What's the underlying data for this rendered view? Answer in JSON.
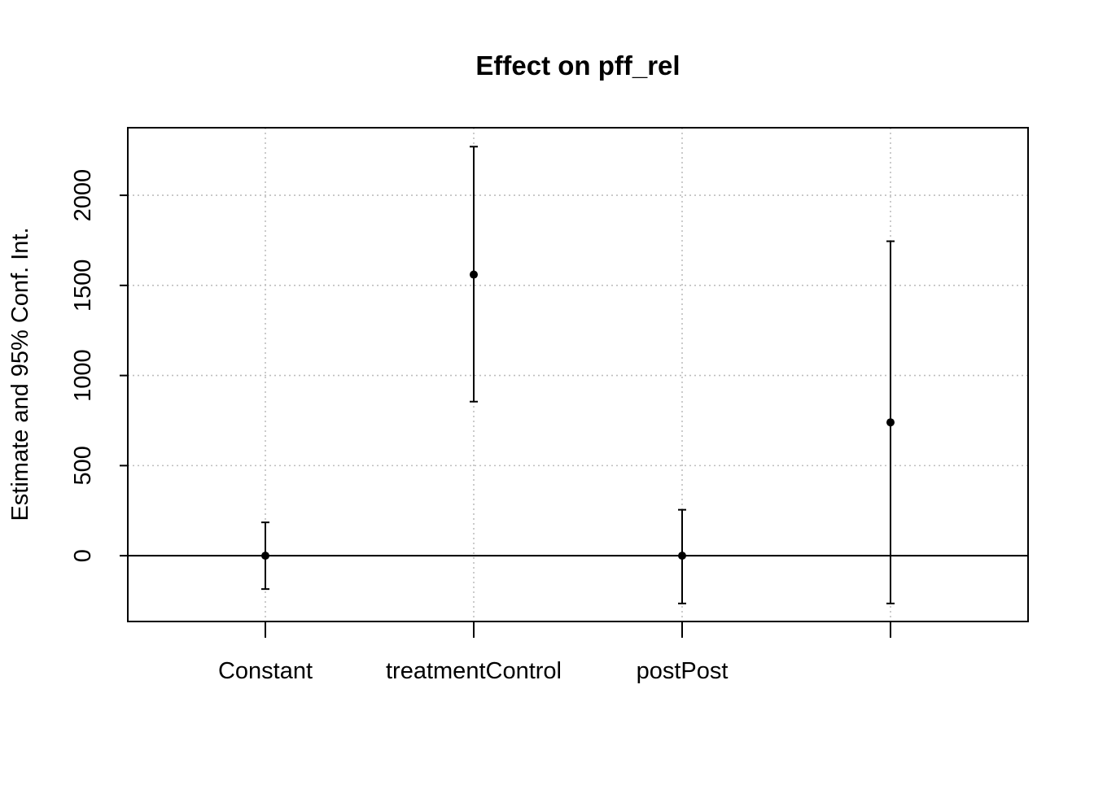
{
  "chart_data": {
    "type": "errorbar",
    "title": "Effect on pff_rel",
    "xlabel": "",
    "ylabel": "Estimate and 95% Conf. Int.",
    "categories": [
      "Constant",
      "treatmentControl",
      "postPost",
      ""
    ],
    "estimates": [
      0,
      1560,
      0,
      740
    ],
    "lower": [
      -185,
      855,
      -265,
      -265
    ],
    "upper": [
      185,
      2270,
      255,
      1745
    ],
    "ylim": [
      -365,
      2375
    ],
    "yticks": [
      0,
      500,
      1000,
      1500,
      2000
    ],
    "ytick_labels": [
      "0",
      "500",
      "1000",
      "1500",
      "2000"
    ],
    "reference_line": 0,
    "grid": true,
    "colors": {
      "points": "#000000",
      "grid": "#bebebe",
      "axes": "#000000"
    }
  }
}
